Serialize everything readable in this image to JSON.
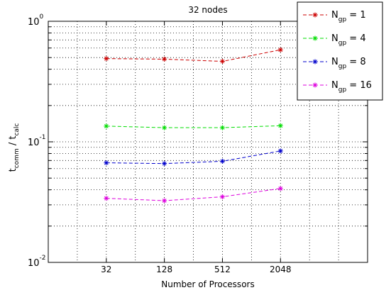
{
  "chart_data": {
    "type": "line",
    "title": "32 nodes",
    "xlabel": "Number of Processors",
    "ylabel": {
      "base": "t",
      "num_sub": "comm",
      "sep": " / t",
      "den_sub": "calc"
    },
    "x_scale": "log2",
    "y_scale": "log10",
    "xlim": [
      8,
      16384
    ],
    "ylim": [
      0.01,
      1
    ],
    "x": [
      32,
      128,
      512,
      2048
    ],
    "x_ticks": [
      {
        "value": 32,
        "label": "32"
      },
      {
        "value": 128,
        "label": "128"
      },
      {
        "value": 512,
        "label": "512"
      },
      {
        "value": 2048,
        "label": "2048"
      }
    ],
    "y_ticks": [
      {
        "value": 0.01,
        "base": "10",
        "exp": "-2"
      },
      {
        "value": 0.1,
        "base": "10",
        "exp": "-1"
      },
      {
        "value": 1,
        "base": "10",
        "exp": "0"
      }
    ],
    "grid": true,
    "legend_position": "top-right",
    "series": [
      {
        "name": "Ngp = 1",
        "legend_base": "N",
        "legend_sub": "gp",
        "legend_rest": " = 1",
        "color": "#cc0000",
        "values": [
          0.49,
          0.485,
          0.465,
          0.58
        ]
      },
      {
        "name": "Ngp = 4",
        "legend_base": "N",
        "legend_sub": "gp",
        "legend_rest": " = 4",
        "color": "#00dd00",
        "values": [
          0.135,
          0.131,
          0.131,
          0.136
        ]
      },
      {
        "name": "Ngp = 8",
        "legend_base": "N",
        "legend_sub": "gp",
        "legend_rest": " = 8",
        "color": "#0000cc",
        "values": [
          0.067,
          0.066,
          0.069,
          0.084
        ]
      },
      {
        "name": "Ngp = 16",
        "legend_base": "N",
        "legend_sub": "gp",
        "legend_rest": " = 16",
        "color": "#dd00dd",
        "values": [
          0.034,
          0.0325,
          0.035,
          0.041
        ]
      }
    ]
  }
}
